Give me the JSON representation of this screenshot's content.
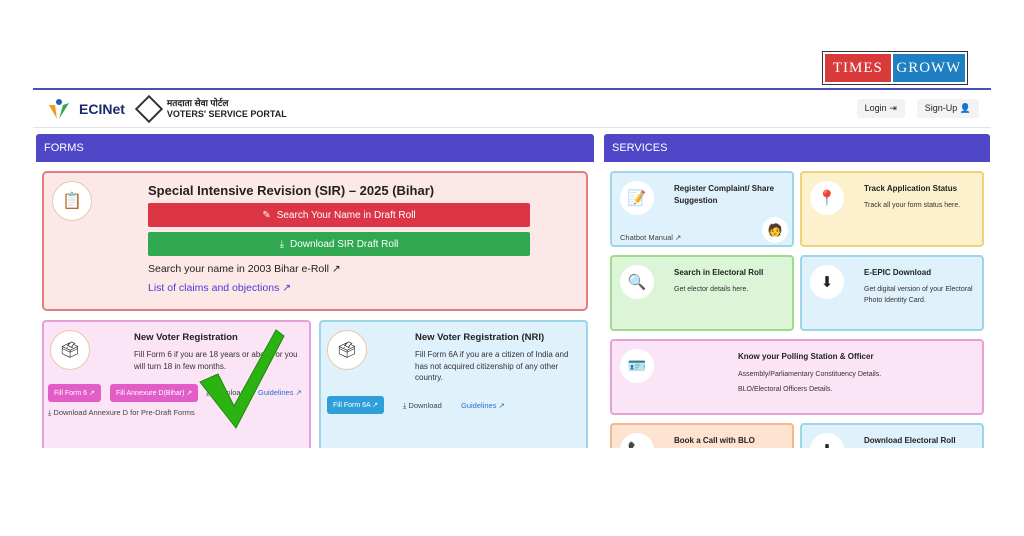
{
  "watermark": {
    "left": "TIMES",
    "right": "GROWW"
  },
  "header": {
    "logo": "ECINet",
    "portal_hindi": "मतदाता सेवा पोर्टल",
    "portal_english": "VOTERS' SERVICE PORTAL",
    "login": "Login",
    "signup": "Sign-Up"
  },
  "forms": {
    "heading": "FORMS",
    "sir": {
      "title": "Special Intensive Revision (SIR) – 2025 (Bihar)",
      "search_button": "Search Your Name in Draft Roll",
      "download_button": "Download SIR Draft Roll",
      "link_2003": "Search your name in 2003 Bihar e-Roll",
      "link_claims": "List of claims and objections"
    },
    "new_voter": {
      "title": "New Voter Registration",
      "desc": "Fill Form 6 if you are 18 years or above or you will turn 18 in few months.",
      "fill_form": "Fill Form 6",
      "fill_annexure": "Fill Annexure D(Bihar)",
      "download": "Download",
      "guidelines": "Guidelines",
      "download_annexure": "Download Annexure D for Pre-Draft Forms"
    },
    "nri": {
      "title": "New Voter Registration (NRI)",
      "desc": "Fill Form 6A if you are a citizen of India and has not acquired citizenship of any other country.",
      "fill_form": "Fill Form 6A",
      "download": "Download",
      "guidelines": "Guidelines"
    }
  },
  "services": {
    "heading": "SERVICES",
    "complaint": {
      "title": "Register Complaint/ Share Suggestion",
      "manual": "Chatbot Manual"
    },
    "track": {
      "title": "Track Application Status",
      "desc": "Track all your form status here."
    },
    "search_roll": {
      "title": "Search in Electoral Roll",
      "desc": "Get elector details here."
    },
    "epic": {
      "title": "E-EPIC Download",
      "desc": "Get digital version of your Electoral Photo Identity Card."
    },
    "polling": {
      "title": "Know your Polling Station & Officer",
      "desc1": "Assembly/Parliamentary Constituency Details.",
      "desc2": "BLO/Electoral Officers Details."
    },
    "blo": {
      "title": "Book a Call with BLO"
    },
    "download_roll": {
      "title": "Download Electoral Roll"
    }
  },
  "colors": {
    "header_purple": "#4f46c8",
    "red_button": "#dc3545",
    "green_button": "#2fa84f",
    "checkmark": "#2bb312"
  }
}
